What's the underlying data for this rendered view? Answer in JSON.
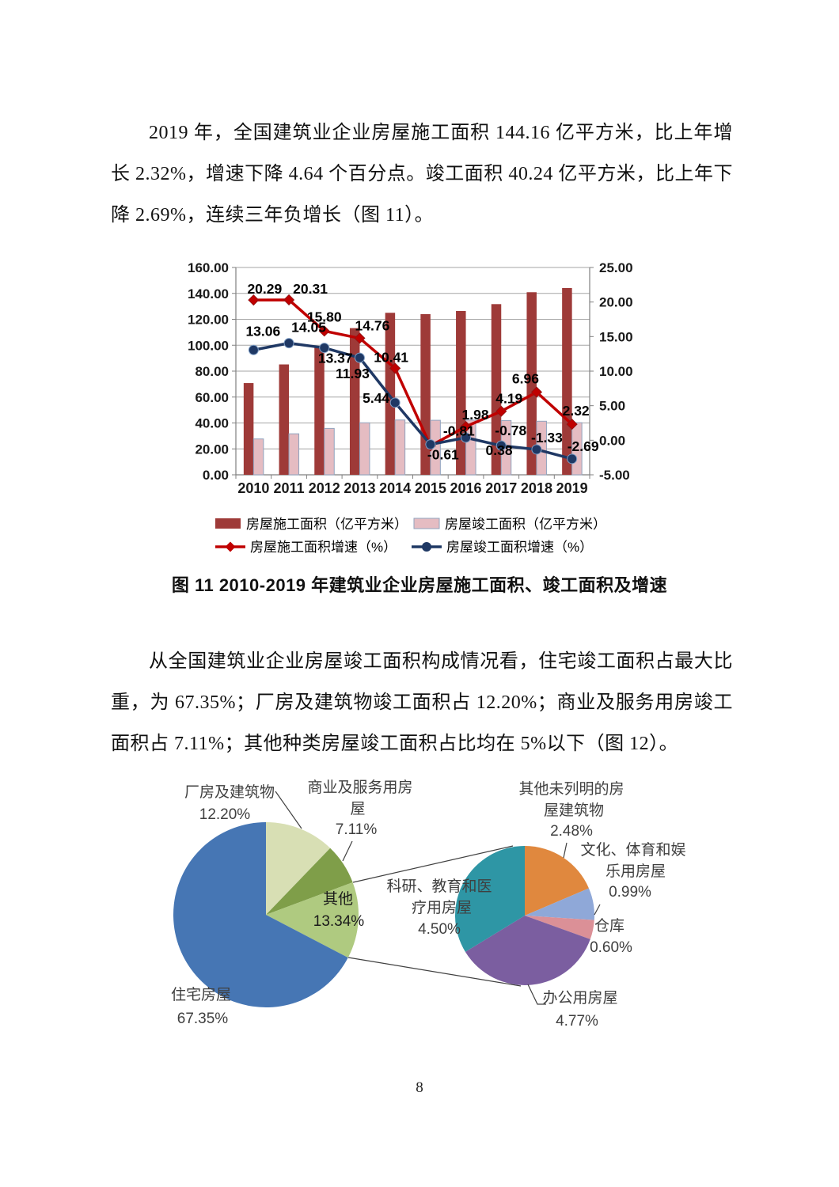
{
  "page": {
    "number": "8"
  },
  "paragraph1": "2019 年，全国建筑业企业房屋施工面积 144.16 亿平方米，比上年增长 2.32%，增速下降 4.64 个百分点。竣工面积 40.24 亿平方米，比上年下降 2.69%，连续三年负增长（图 11）。",
  "figure11_caption": "图 11  2010-2019 年建筑业企业房屋施工面积、竣工面积及增速",
  "paragraph2": "从全国建筑业企业房屋竣工面积构成情况看，住宅竣工面积占最大比重，为 67.35%；厂房及建筑物竣工面积占 12.20%；商业及服务用房竣工面积占 7.11%；其他种类房屋竣工面积占比均在 5%以下（图 12）。",
  "colors": {
    "bar_construction": "#9E3A38",
    "bar_completed": "#E5BCC2",
    "bar_completed_border": "#91A3BE",
    "line_construction_growth": "#C00000",
    "line_completed_growth": "#1F3864",
    "gridline": "#A6A6A6",
    "axis": "#808080",
    "chart_text": "#1A1A1A",
    "pie_label_text": "#3F3F3F",
    "leader_line": "#404040"
  },
  "chart_data": [
    {
      "type": "bar",
      "subtype": "combo-bar-line-dual-axis",
      "categories": [
        "2010",
        "2011",
        "2012",
        "2013",
        "2014",
        "2015",
        "2016",
        "2017",
        "2018",
        "2019"
      ],
      "series": [
        {
          "name": "房屋施工面积（亿平方米）",
          "kind": "bar",
          "axis": "left",
          "color": "#9E3A38",
          "values": [
            70.8,
            85.18,
            98.65,
            113.19,
            125.02,
            123.97,
            126.42,
            131.72,
            140.9,
            144.16
          ]
        },
        {
          "name": "房屋竣工面积（亿平方米）",
          "kind": "bar",
          "axis": "left",
          "color": "#E5BCC2",
          "values": [
            27.68,
            31.64,
            35.8,
            40.15,
            42.31,
            42.08,
            42.23,
            41.9,
            41.35,
            40.24
          ]
        },
        {
          "name": "房屋施工面积增速（%）",
          "kind": "line",
          "axis": "right",
          "color": "#C00000",
          "marker": "diamond",
          "data_labels": true,
          "values": [
            20.29,
            20.31,
            15.8,
            14.76,
            10.41,
            -0.81,
            1.98,
            4.19,
            6.96,
            2.32
          ]
        },
        {
          "name": "房屋竣工面积增速（%）",
          "kind": "line",
          "axis": "right",
          "color": "#1F3864",
          "marker": "circle",
          "data_labels": true,
          "values": [
            13.06,
            14.05,
            13.37,
            11.93,
            5.44,
            -0.61,
            0.38,
            -0.78,
            -1.33,
            -2.69
          ]
        }
      ],
      "left_axis": {
        "min": 0,
        "max": 160,
        "step": 20,
        "tick_format": "0.00"
      },
      "right_axis": {
        "min": -5,
        "max": 25,
        "step": 5,
        "tick_format": "0.00"
      },
      "grid": true,
      "legend_position": "bottom"
    },
    {
      "type": "pie",
      "name": "房屋竣工面积构成-主饼图",
      "start_angle_deg": 0,
      "slices": [
        {
          "label": "厂房及建筑物",
          "value": 12.2,
          "color": "#D8DFB4",
          "label_lines": [
            "厂房及建筑物",
            "12.20%"
          ]
        },
        {
          "label": "商业及服务用房屋",
          "value": 7.11,
          "color": "#7F9E49",
          "label_lines": [
            "商业及服务用房",
            "屋",
            "7.11%"
          ]
        },
        {
          "label": "其他",
          "value": 13.34,
          "color": "#AFCA80",
          "label_lines": [
            "其他",
            "13.34%"
          ]
        },
        {
          "label": "住宅房屋",
          "value": 67.35,
          "color": "#4676B4",
          "label_lines": [
            "住宅房屋",
            "67.35%"
          ]
        }
      ]
    },
    {
      "type": "pie",
      "name": "其他类房屋构成-子饼图",
      "start_angle_deg": 0,
      "total_of_parent": 13.34,
      "slices": [
        {
          "label": "其他未列明的房屋建筑物",
          "value": 2.48,
          "color": "#E0883E",
          "label_lines": [
            "其他未列明的房",
            "屋建筑物",
            "2.48%"
          ]
        },
        {
          "label": "文化、体育和娱乐用房屋",
          "value": 0.99,
          "color": "#8FA8D8",
          "label_lines": [
            "文化、体育和娱",
            "乐用房屋",
            "0.99%"
          ]
        },
        {
          "label": "仓库",
          "value": 0.6,
          "color": "#DB9097",
          "label_lines": [
            "仓库",
            "0.60%"
          ]
        },
        {
          "label": "办公用房屋",
          "value": 4.77,
          "color": "#7B5EA0",
          "label_lines": [
            "办公用房屋",
            "4.77%"
          ]
        },
        {
          "label": "科研、教育和医疗用房屋",
          "value": 4.5,
          "color": "#2E96A5",
          "label_lines": [
            "科研、教育和医",
            "疗用房屋",
            "4.50%"
          ]
        }
      ]
    }
  ]
}
